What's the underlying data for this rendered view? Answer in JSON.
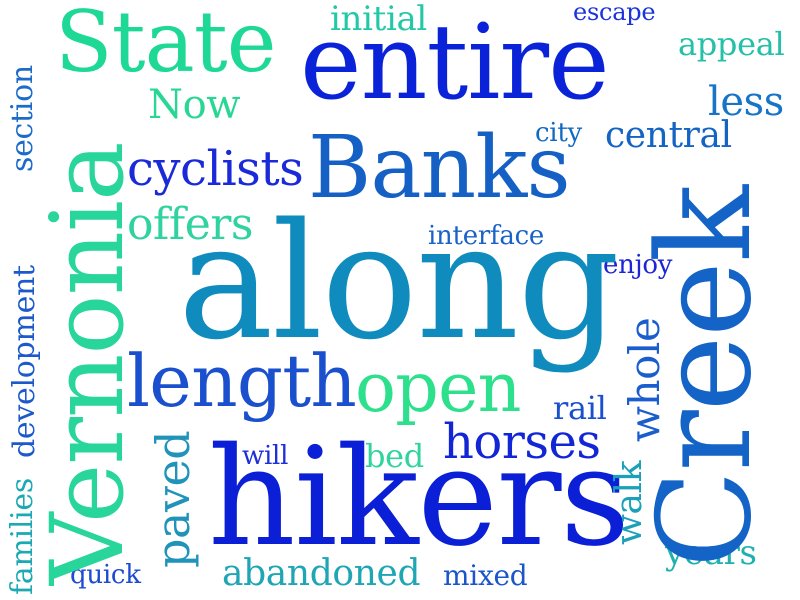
{
  "words": {
    "entire": {
      "text": "entire",
      "color": "#0a23d8"
    },
    "state": {
      "text": "State",
      "color": "#1ed895"
    },
    "initial": {
      "text": "initial",
      "color": "#21c9a6"
    },
    "escape": {
      "text": "escape",
      "color": "#1a34dc"
    },
    "appeal": {
      "text": "appeal",
      "color": "#25c0a8"
    },
    "less": {
      "text": "less",
      "color": "#1774c7"
    },
    "now": {
      "text": "Now",
      "color": "#2ad694"
    },
    "city": {
      "text": "city",
      "color": "#1269c4"
    },
    "central": {
      "text": "central",
      "color": "#1464c3"
    },
    "cyclists": {
      "text": "cyclists",
      "color": "#1a2ad9"
    },
    "banks": {
      "text": "Banks",
      "color": "#1560c5"
    },
    "offers": {
      "text": "offers",
      "color": "#30d2a0"
    },
    "interface": {
      "text": "interface",
      "color": "#1a62c7"
    },
    "enjoy": {
      "text": "enjoy",
      "color": "#1c25d8"
    },
    "along": {
      "text": "along",
      "color": "#0f8bbd"
    },
    "length": {
      "text": "length",
      "color": "#1a4fce"
    },
    "open": {
      "text": "open",
      "color": "#2ce08c"
    },
    "rail": {
      "text": "rail",
      "color": "#1a4fce"
    },
    "horses": {
      "text": "horses",
      "color": "#1226d6"
    },
    "bed": {
      "text": "bed",
      "color": "#30d49c"
    },
    "will": {
      "text": "will",
      "color": "#1f2fd8"
    },
    "hikers": {
      "text": "hikers",
      "color": "#0a1fd6"
    },
    "years": {
      "text": "years",
      "color": "#1eb1b0"
    },
    "quick": {
      "text": "quick",
      "color": "#1c4ad0"
    },
    "abandoned": {
      "text": "abandoned",
      "color": "#1fa6b5"
    },
    "mixed": {
      "text": "mixed",
      "color": "#1a55cc"
    },
    "vernonia": {
      "text": "Vernonia",
      "color": "#28d59a"
    },
    "creek": {
      "text": "Creek",
      "color": "#1463c6"
    },
    "section": {
      "text": "section",
      "color": "#1b6bc8"
    },
    "development": {
      "text": "development",
      "color": "#1c5acb"
    },
    "families": {
      "text": "families",
      "color": "#1da9b4"
    },
    "paved": {
      "text": "paved",
      "color": "#1f93b9"
    },
    "whole": {
      "text": "whole",
      "color": "#1a5dcc"
    },
    "walk": {
      "text": "walk",
      "color": "#1aa0b8"
    }
  }
}
